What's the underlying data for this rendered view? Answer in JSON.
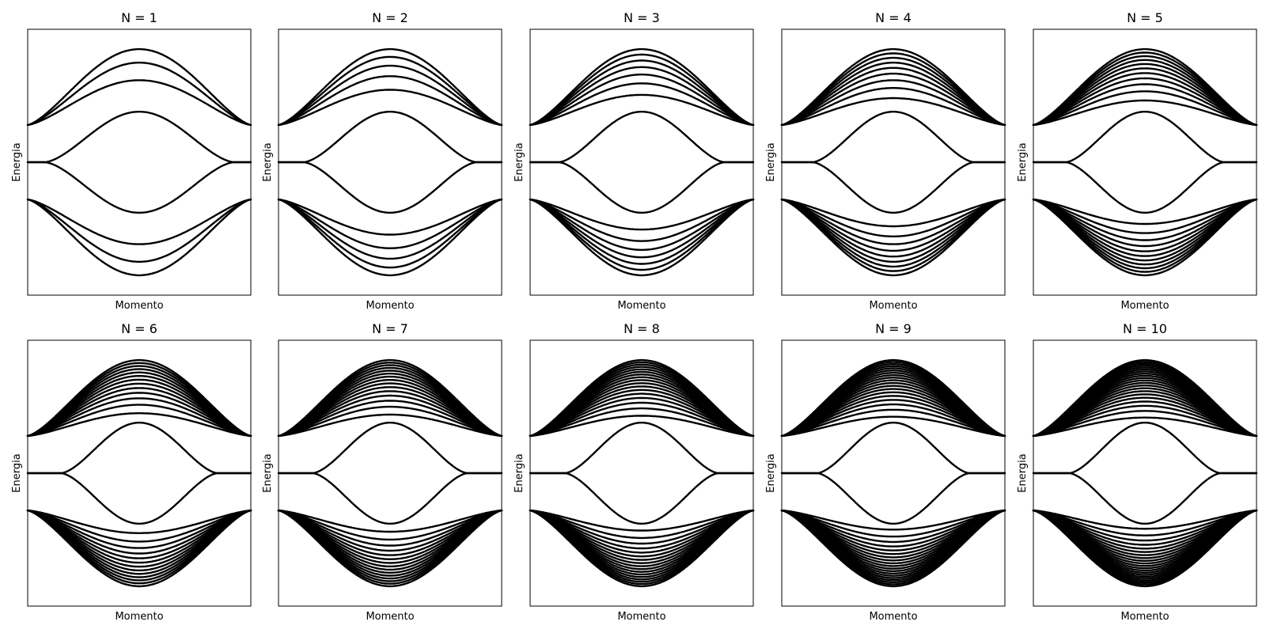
{
  "chart_data": {
    "type": "line",
    "layout": "grid 2x5",
    "x_tick_labels": "none",
    "y_tick_labels": "none",
    "grid": false,
    "legend": "none",
    "ylim": [
      -1.0,
      1.0
    ],
    "line_color": "#000000",
    "panels": [
      {
        "title": "N = 1",
        "xlabel": "Momento",
        "ylabel": "Energia",
        "cells": 1
      },
      {
        "title": "N = 2",
        "xlabel": "Momento",
        "ylabel": "Energia",
        "cells": 2
      },
      {
        "title": "N = 3",
        "xlabel": "Momento",
        "ylabel": "Energia",
        "cells": 3
      },
      {
        "title": "N = 4",
        "xlabel": "Momento",
        "ylabel": "Energia",
        "cells": 4
      },
      {
        "title": "N = 5",
        "xlabel": "Momento",
        "ylabel": "Energia",
        "cells": 5
      },
      {
        "title": "N = 6",
        "xlabel": "Momento",
        "ylabel": "Energia",
        "cells": 6
      },
      {
        "title": "N = 7",
        "xlabel": "Momento",
        "ylabel": "Energia",
        "cells": 7
      },
      {
        "title": "N = 8",
        "xlabel": "Momento",
        "ylabel": "Energia",
        "cells": 8
      },
      {
        "title": "N = 9",
        "xlabel": "Momento",
        "ylabel": "Energia",
        "cells": 9
      },
      {
        "title": "N = 10",
        "xlabel": "Momento",
        "ylabel": "Energia",
        "cells": 10
      }
    ]
  }
}
